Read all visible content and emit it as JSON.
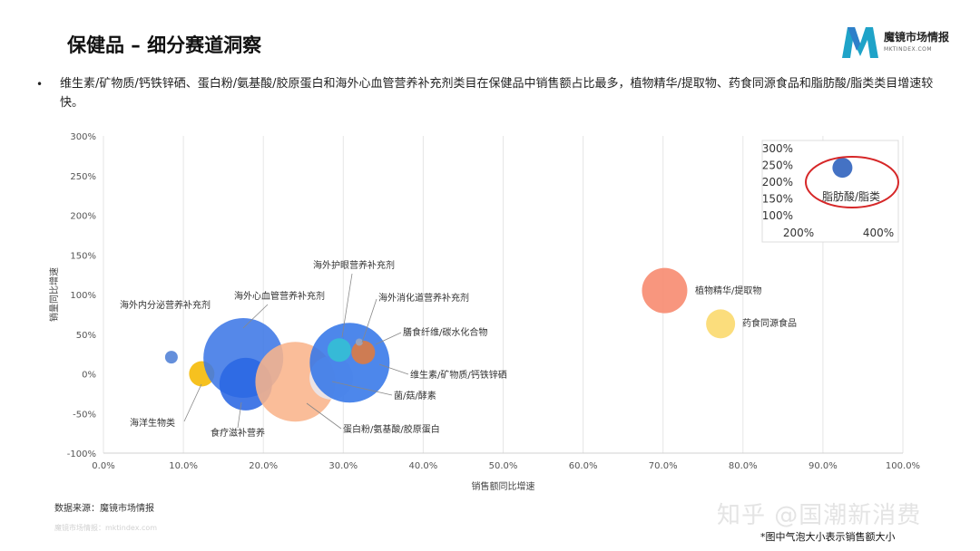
{
  "header": {
    "title": "保健品 – 细分赛道洞察",
    "logo_text": "魔镜市场情报",
    "logo_sub": "MKTINDEX.COM"
  },
  "bullet": "维生素/矿物质/钙铁锌硒、蛋白粉/氨基酸/胶原蛋白和海外心血管营养补充剂类目在保健品中销售额占比最多，植物精华/提取物、药食同源食品和脂肪酸/脂类类目增速较快。",
  "chart_data": {
    "type": "scatter",
    "xlabel": "销售额同比增速",
    "ylabel": "销量同比增速",
    "xlim": [
      0,
      100
    ],
    "ylim": [
      -100,
      300
    ],
    "x_ticks": [
      "0.0%",
      "10.0%",
      "20.0%",
      "30.0%",
      "40.0%",
      "50.0%",
      "60.0%",
      "70.0%",
      "80.0%",
      "90.0%",
      "100.0%"
    ],
    "y_ticks": [
      "-100%",
      "-50%",
      "0%",
      "50%",
      "100%",
      "150%",
      "200%",
      "250%",
      "300%"
    ],
    "grid": "vertical",
    "points": [
      {
        "name": "海外内分泌营养补充剂",
        "x": 8.5,
        "y": 21,
        "size": 7,
        "color": "#4f7fd6"
      },
      {
        "name": "海洋生物类",
        "x": 12.3,
        "y": 0,
        "size": 14,
        "color": "#f5b800"
      },
      {
        "name": "海外心血管营养补充剂",
        "x": 17.5,
        "y": 20,
        "size": 44,
        "color": "#3d77e6"
      },
      {
        "name": "食疗滋补营养",
        "x": 17.8,
        "y": -13,
        "size": 29,
        "color": "#2a66e3"
      },
      {
        "name": "蛋白粉/氨基酸/胶原蛋白",
        "x": 24,
        "y": -10,
        "size": 44,
        "color": "#f9b48b"
      },
      {
        "name": "菌/菇/酵素",
        "x": 28.5,
        "y": -5,
        "size": 24,
        "color": "#e8e8ef"
      },
      {
        "name": "维生素/矿物质/钙铁锌硒",
        "x": 30.8,
        "y": 14,
        "size": 44,
        "color": "#3476e8"
      },
      {
        "name": "海外护眼营养补充剂",
        "x": 29.5,
        "y": 30,
        "size": 13,
        "color": "#33c2d4"
      },
      {
        "name": "膳食纤维/碳水化合物",
        "x": 32.5,
        "y": 27,
        "size": 13,
        "color": "#e07b3d"
      },
      {
        "name": "海外消化道营养补充剂",
        "x": 32.0,
        "y": 40,
        "size": 4,
        "color": "#9aa7c2"
      },
      {
        "name": "植物精华/提取物",
        "x": 70.2,
        "y": 105,
        "size": 25,
        "color": "#f7886c"
      },
      {
        "name": "药食同源食品",
        "x": 77.2,
        "y": 63,
        "size": 16,
        "color": "#fbd86a"
      }
    ],
    "inset": {
      "xlim": [
        200,
        400
      ],
      "ylim": [
        100,
        300
      ],
      "x_ticks": [
        "200%",
        "400%"
      ],
      "y_ticks": [
        "100%",
        "150%",
        "200%",
        "250%",
        "300%"
      ],
      "point": {
        "name": "脂肪酸/脂类",
        "x": 310,
        "y": 243,
        "size": 11,
        "color": "#4472c4"
      }
    }
  },
  "footer": {
    "source": "数据来源：魔镜市场情报",
    "faint": "魔镜市场情报：mktindex.com",
    "watermark": "知乎 @国潮新消费",
    "note": "*图中气泡大小表示销售额大小"
  }
}
